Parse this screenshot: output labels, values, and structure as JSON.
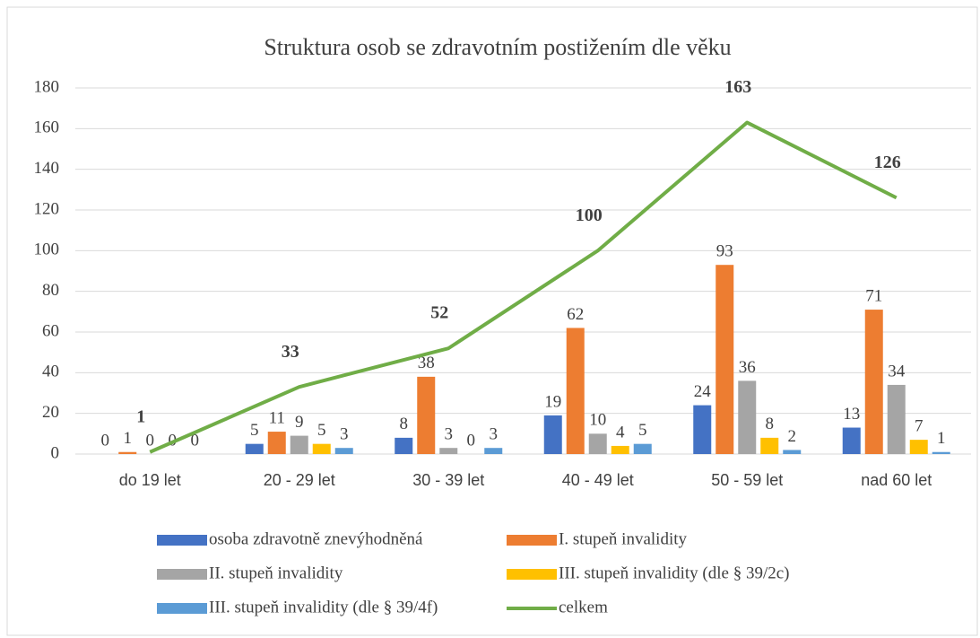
{
  "chart_data": {
    "type": "bar",
    "title": "Struktura osob se zdravotním postižením dle věku",
    "categories": [
      "do 19 let",
      "20 - 29 let",
      "30 - 39 let",
      "40 - 49 let",
      "50 - 59 let",
      "nad 60 let"
    ],
    "series": [
      {
        "name": "osoba zdravotně znevýhodněná",
        "color": "#4472c4",
        "values": [
          0,
          5,
          8,
          19,
          24,
          13
        ]
      },
      {
        "name": "I. stupeň invalidity",
        "color": "#ed7d31",
        "values": [
          1,
          11,
          38,
          62,
          93,
          71
        ]
      },
      {
        "name": "II. stupeň invalidity",
        "color": "#a5a5a5",
        "values": [
          0,
          9,
          3,
          10,
          36,
          34
        ]
      },
      {
        "name": "III. stupeň invalidity (dle § 39/2c)",
        "color": "#ffc000",
        "values": [
          0,
          5,
          0,
          4,
          8,
          7
        ]
      },
      {
        "name": "III. stupeň invalidity (dle § 39/4f)",
        "color": "#5b9bd5",
        "values": [
          0,
          3,
          3,
          5,
          2,
          1
        ]
      },
      {
        "name": "celkem",
        "color": "#70ad47",
        "type": "line",
        "values": [
          1,
          33,
          52,
          100,
          163,
          126
        ]
      }
    ],
    "ylim": [
      0,
      180
    ],
    "yticks": [
      0,
      20,
      40,
      60,
      80,
      100,
      120,
      140,
      160,
      180
    ],
    "grid": true,
    "legend": "bottom"
  }
}
